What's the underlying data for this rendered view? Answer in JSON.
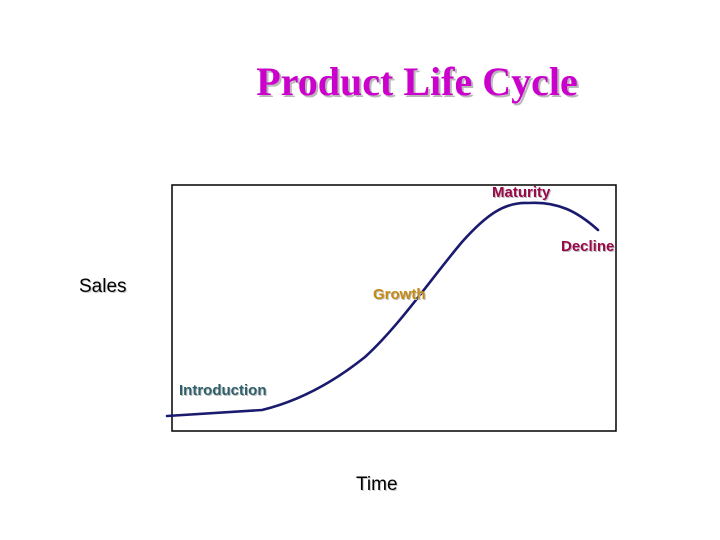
{
  "title": "Product Life Cycle",
  "y_axis_label": "Sales",
  "x_axis_label": "Time",
  "stages": [
    {
      "label": "Introduction"
    },
    {
      "label": "Growth"
    },
    {
      "label": "Maturity"
    },
    {
      "label": "Decline"
    }
  ],
  "colors": {
    "title": "#cc00cc",
    "curve": "#1a1a6e",
    "frame": "#000000",
    "introduction": "#2e5f6b",
    "growth": "#c58a12",
    "maturity": "#9a0a4a",
    "decline": "#9a0a4a"
  }
}
